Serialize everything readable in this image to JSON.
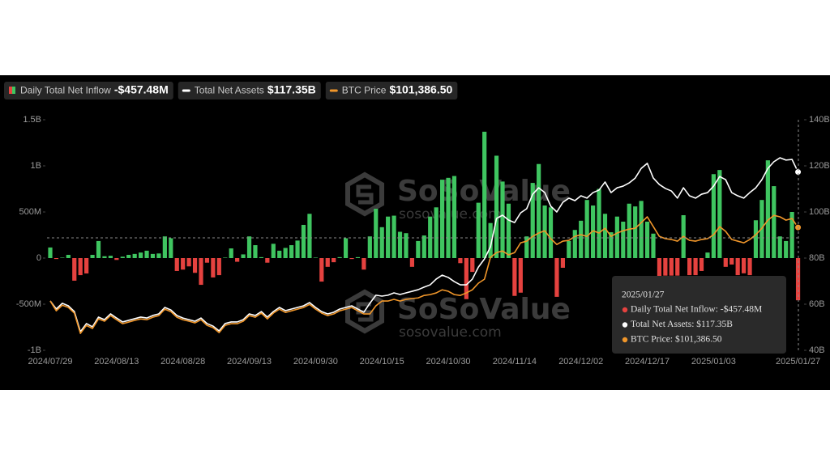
{
  "chart_data": {
    "type": "combo",
    "categories": [
      "2024/07/29",
      null,
      null,
      null,
      null,
      null,
      null,
      null,
      null,
      null,
      null,
      "2024/08/13",
      null,
      null,
      null,
      null,
      null,
      null,
      null,
      null,
      null,
      null,
      "2024/08/28",
      null,
      null,
      null,
      null,
      null,
      null,
      null,
      null,
      null,
      null,
      "2024/09/13",
      null,
      null,
      null,
      null,
      null,
      null,
      null,
      null,
      null,
      null,
      "2024/09/30",
      null,
      null,
      null,
      null,
      null,
      null,
      null,
      null,
      null,
      null,
      "2024/10/15",
      null,
      null,
      null,
      null,
      null,
      null,
      null,
      null,
      null,
      null,
      "2024/10/30",
      null,
      null,
      null,
      null,
      null,
      null,
      null,
      null,
      null,
      null,
      "2024/11/14",
      null,
      null,
      null,
      null,
      null,
      null,
      null,
      null,
      null,
      null,
      "2024/12/02",
      null,
      null,
      null,
      null,
      null,
      null,
      null,
      null,
      null,
      null,
      "2024/12/17",
      null,
      null,
      null,
      null,
      null,
      null,
      null,
      null,
      null,
      null,
      "2025/01/03",
      null,
      null,
      null,
      null,
      null,
      null,
      null,
      null,
      null,
      null,
      null,
      null,
      null,
      "2025/01/27"
    ],
    "series": [
      {
        "name": "Daily Total Net Inflow",
        "legend_value": "-$457.48M",
        "type": "bar",
        "color": "#3fc560",
        "negative_color": "#e5423f",
        "values": [
          115,
          -10,
          5,
          35,
          -245,
          -185,
          -167,
          35,
          185,
          20,
          25,
          -20,
          15,
          35,
          45,
          60,
          80,
          45,
          50,
          235,
          215,
          -140,
          -125,
          -90,
          -160,
          -290,
          -50,
          -210,
          -185,
          5,
          105,
          -40,
          40,
          235,
          140,
          10,
          -50,
          155,
          80,
          110,
          140,
          190,
          360,
          480,
          5,
          -255,
          -95,
          -45,
          10,
          215,
          -10,
          10,
          -125,
          235,
          535,
          335,
          450,
          460,
          285,
          270,
          -95,
          185,
          245,
          450,
          550,
          850,
          870,
          890,
          -55,
          -445,
          -150,
          600,
          1370,
          380,
          1110,
          830,
          590,
          -410,
          -375,
          235,
          815,
          1020,
          570,
          550,
          -420,
          -105,
          185,
          305,
          405,
          630,
          570,
          750,
          480,
          280,
          450,
          395,
          590,
          560,
          620,
          395,
          265,
          -195,
          -190,
          -190,
          -190,
          465,
          -185,
          -185,
          -140,
          60,
          910,
          955,
          -95,
          -70,
          -185,
          -165,
          -185,
          410,
          630,
          1060,
          780,
          235,
          185,
          500,
          -457.48
        ]
      },
      {
        "name": "Total Net Assets",
        "legend_value": "$117.35B",
        "type": "line",
        "axis": "y2",
        "color": "#ffffff",
        "values": [
          61.4,
          57.9,
          60.4,
          59.3,
          56.8,
          48.1,
          51.6,
          50.2,
          54.4,
          53.3,
          55.8,
          54.0,
          52.3,
          53.0,
          53.7,
          54.4,
          54.0,
          55.1,
          55.8,
          58.6,
          57.5,
          55.1,
          54.0,
          53.3,
          52.6,
          54.0,
          51.6,
          50.5,
          48.4,
          51.6,
          52.3,
          52.3,
          53.3,
          55.8,
          55.1,
          56.8,
          54.4,
          56.8,
          58.6,
          57.2,
          57.9,
          58.6,
          59.3,
          60.7,
          58.6,
          56.8,
          55.8,
          56.5,
          57.9,
          58.6,
          59.3,
          57.9,
          56.5,
          60.4,
          63.9,
          63.5,
          63.9,
          64.9,
          64.2,
          64.9,
          65.6,
          66.3,
          67.4,
          68.4,
          70.9,
          72.6,
          71.6,
          69.8,
          68.4,
          68.4,
          70.9,
          76.1,
          79.6,
          84.9,
          97.2,
          98.6,
          96.5,
          95.4,
          99.6,
          101.4,
          107.7,
          110.5,
          108.4,
          102.5,
          100.0,
          104.2,
          106.0,
          104.9,
          107.0,
          106.0,
          108.4,
          109.5,
          113.0,
          108.4,
          110.5,
          111.2,
          112.6,
          114.7,
          118.9,
          121.1,
          114.7,
          111.9,
          110.2,
          109.1,
          106.0,
          110.5,
          107.0,
          106.0,
          107.7,
          108.4,
          111.2,
          115.4,
          114.0,
          108.4,
          107.0,
          106.0,
          108.4,
          110.5,
          114.0,
          118.9,
          121.8,
          123.5,
          122.5,
          122.8,
          117.35
        ]
      },
      {
        "name": "BTC Price",
        "legend_value": "$101,386.50",
        "type": "line",
        "axis": "y3",
        "color": "#f0962a",
        "values": [
          66000,
          61300,
          64000,
          62900,
          60200,
          50400,
          54300,
          52800,
          57400,
          56300,
          59000,
          57000,
          55100,
          55900,
          56700,
          57400,
          57000,
          58200,
          59000,
          62100,
          60900,
          58200,
          57000,
          56300,
          55500,
          57000,
          54300,
          53200,
          50800,
          54300,
          55100,
          55100,
          56300,
          59000,
          58200,
          60200,
          57400,
          60200,
          62100,
          60500,
          61300,
          62100,
          62900,
          64400,
          62100,
          60200,
          59000,
          59800,
          61300,
          62100,
          62900,
          61300,
          59800,
          59800,
          63700,
          66000,
          66000,
          66800,
          66000,
          66800,
          67200,
          67500,
          68700,
          69100,
          69900,
          71400,
          70700,
          69100,
          68700,
          69900,
          71400,
          74600,
          76500,
          87000,
          89300,
          90100,
          88200,
          89300,
          94000,
          94800,
          97100,
          98700,
          99800,
          96000,
          93200,
          94800,
          95200,
          97100,
          97900,
          97100,
          99800,
          98700,
          101000,
          97100,
          98700,
          99800,
          100600,
          101000,
          103700,
          106500,
          101800,
          97100,
          96000,
          95600,
          94800,
          97100,
          95200,
          94800,
          95600,
          96000,
          97900,
          101800,
          99500,
          95600,
          94800,
          94000,
          95600,
          97900,
          101000,
          104900,
          107200,
          106500,
          104900,
          105700,
          101386.5
        ]
      }
    ],
    "ylim": [
      -1000,
      1500
    ],
    "yticks": [
      {
        "value": -1000,
        "label": "-1B"
      },
      {
        "value": -500,
        "label": "-500M"
      },
      0,
      {
        "value": 500,
        "label": "500M"
      },
      {
        "value": 1000,
        "label": "1B"
      },
      {
        "value": 1500,
        "label": "1.5B"
      }
    ],
    "y2lim": [
      40,
      140
    ],
    "y2ticks": [
      {
        "value": 40,
        "label": "40B"
      },
      {
        "value": 60,
        "label": "60B"
      },
      {
        "value": 80,
        "label": "80B"
      },
      {
        "value": 100,
        "label": "100B"
      },
      {
        "value": 120,
        "label": "120B"
      },
      {
        "value": 140,
        "label": "140B"
      }
    ],
    "y3lim": [
      42300,
      153200
    ],
    "grid": false,
    "legend": "top-left",
    "watermarks": [
      {
        "brand": "SoSoValue",
        "site": "sosovalue.com"
      },
      {
        "brand": "SoSoValue",
        "site": "sosovalue.com"
      }
    ],
    "tooltip": {
      "title": "2025/01/27",
      "lines": [
        "Daily Total Net Inflow: -$457.48M",
        "Total Net Assets: $117.35B",
        "BTC Price: $101,386.50"
      ]
    }
  }
}
